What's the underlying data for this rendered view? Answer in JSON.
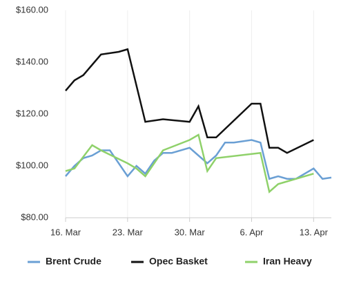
{
  "chart_data": {
    "type": "line",
    "xlim": [
      "16. Mar",
      "15. Apr"
    ],
    "xticks": [
      "16. Mar",
      "23. Mar",
      "30. Mar",
      "6. Apr",
      "13. Apr"
    ],
    "ylim": [
      80,
      160
    ],
    "yticks": [
      {
        "value": 80,
        "label": "$80.00"
      },
      {
        "value": 100,
        "label": "$100.00"
      },
      {
        "value": 120,
        "label": "$120.00"
      },
      {
        "value": 140,
        "label": "$140.00"
      },
      {
        "value": 160,
        "label": "$160.00"
      }
    ],
    "grid": true,
    "legend": "bottom",
    "series": [
      {
        "name": "Brent Crude",
        "color": "#6a9fd4",
        "x": [
          "16. Mar",
          "17. Mar",
          "18. Mar",
          "19. Mar",
          "20. Mar",
          "21. Mar",
          "23. Mar",
          "24. Mar",
          "25. Mar",
          "26. Mar",
          "27. Mar",
          "28. Mar",
          "30. Mar",
          "31. Mar",
          "1. Apr",
          "2. Apr",
          "3. Apr",
          "4. Apr",
          "6. Apr",
          "7. Apr",
          "8. Apr",
          "9. Apr",
          "10. Apr",
          "11. Apr",
          "13. Apr",
          "14. Apr",
          "15. Apr"
        ],
        "values": [
          96,
          100,
          103,
          104,
          106,
          106,
          96,
          100,
          97,
          102,
          105,
          105,
          107,
          104,
          101,
          104,
          109,
          109,
          110,
          109,
          95,
          96,
          95,
          95,
          99,
          95,
          95.5
        ]
      },
      {
        "name": "Opec Basket",
        "color": "#111111",
        "x": [
          "16. Mar",
          "17. Mar",
          "18. Mar",
          "19. Mar",
          "20. Mar",
          "22. Mar",
          "23. Mar",
          "25. Mar",
          "27. Mar",
          "30. Mar",
          "31. Mar",
          "1. Apr",
          "2. Apr",
          "6. Apr",
          "7. Apr",
          "8. Apr",
          "9. Apr",
          "10. Apr",
          "13. Apr"
        ],
        "values": [
          129,
          133,
          135,
          139,
          143,
          144,
          145,
          117,
          118,
          117,
          123,
          111,
          111,
          124,
          124,
          107,
          107,
          105,
          110
        ]
      },
      {
        "name": "Iran Heavy",
        "color": "#8fd16a",
        "x": [
          "16. Mar",
          "17. Mar",
          "19. Mar",
          "20. Mar",
          "23. Mar",
          "24. Mar",
          "25. Mar",
          "27. Mar",
          "30. Mar",
          "31. Mar",
          "1. Apr",
          "2. Apr",
          "7. Apr",
          "8. Apr",
          "9. Apr",
          "10. Apr",
          "13. Apr"
        ],
        "values": [
          98,
          99,
          108,
          106,
          101,
          99,
          96,
          106,
          110,
          112,
          98,
          103,
          105,
          90,
          93,
          94,
          97
        ]
      }
    ]
  }
}
